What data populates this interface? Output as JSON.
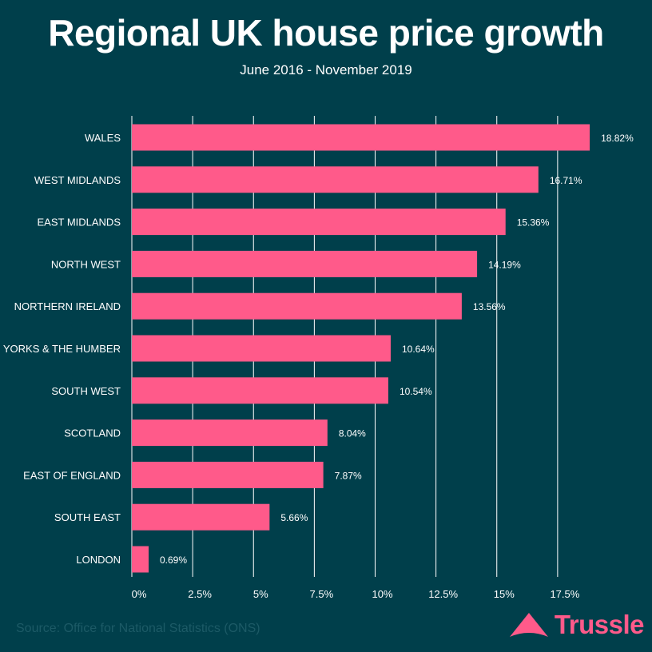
{
  "title": "Regional UK house price growth",
  "subtitle": "June 2016 - November 2019",
  "source": "Source: Office for National Statistics (ONS)",
  "brand": "Trussle",
  "colors": {
    "background": "#003f4b",
    "bar": "#ff5a8a",
    "grid": "#ffffff",
    "text": "#ffffff"
  },
  "chart_data": {
    "type": "bar",
    "orientation": "horizontal",
    "title": "Regional UK house price growth",
    "subtitle": "June 2016 - November 2019",
    "xlabel": "",
    "ylabel": "",
    "categories": [
      "WALES",
      "WEST MIDLANDS",
      "EAST MIDLANDS",
      "NORTH WEST",
      "NORTHERN IRELAND",
      "YORKS & THE HUMBER",
      "SOUTH WEST",
      "SCOTLAND",
      "EAST OF ENGLAND",
      "SOUTH EAST",
      "LONDON"
    ],
    "values": [
      18.82,
      16.71,
      15.36,
      14.19,
      13.56,
      10.64,
      10.54,
      8.04,
      7.87,
      5.66,
      0.69
    ],
    "value_labels": [
      "18.82%",
      "16.71%",
      "15.36%",
      "14.19%",
      "13.56%",
      "10.64%",
      "10.54%",
      "8.04%",
      "7.87%",
      "5.66%",
      "0.69%"
    ],
    "xlim": [
      0,
      19.5
    ],
    "xticks": [
      0,
      2.5,
      5,
      7.5,
      10,
      12.5,
      15,
      17.5
    ],
    "xtick_labels": [
      "0%",
      "2.5%",
      "5%",
      "7.5%",
      "10%",
      "12.5%",
      "15%",
      "17.5%"
    ],
    "grid": true
  }
}
